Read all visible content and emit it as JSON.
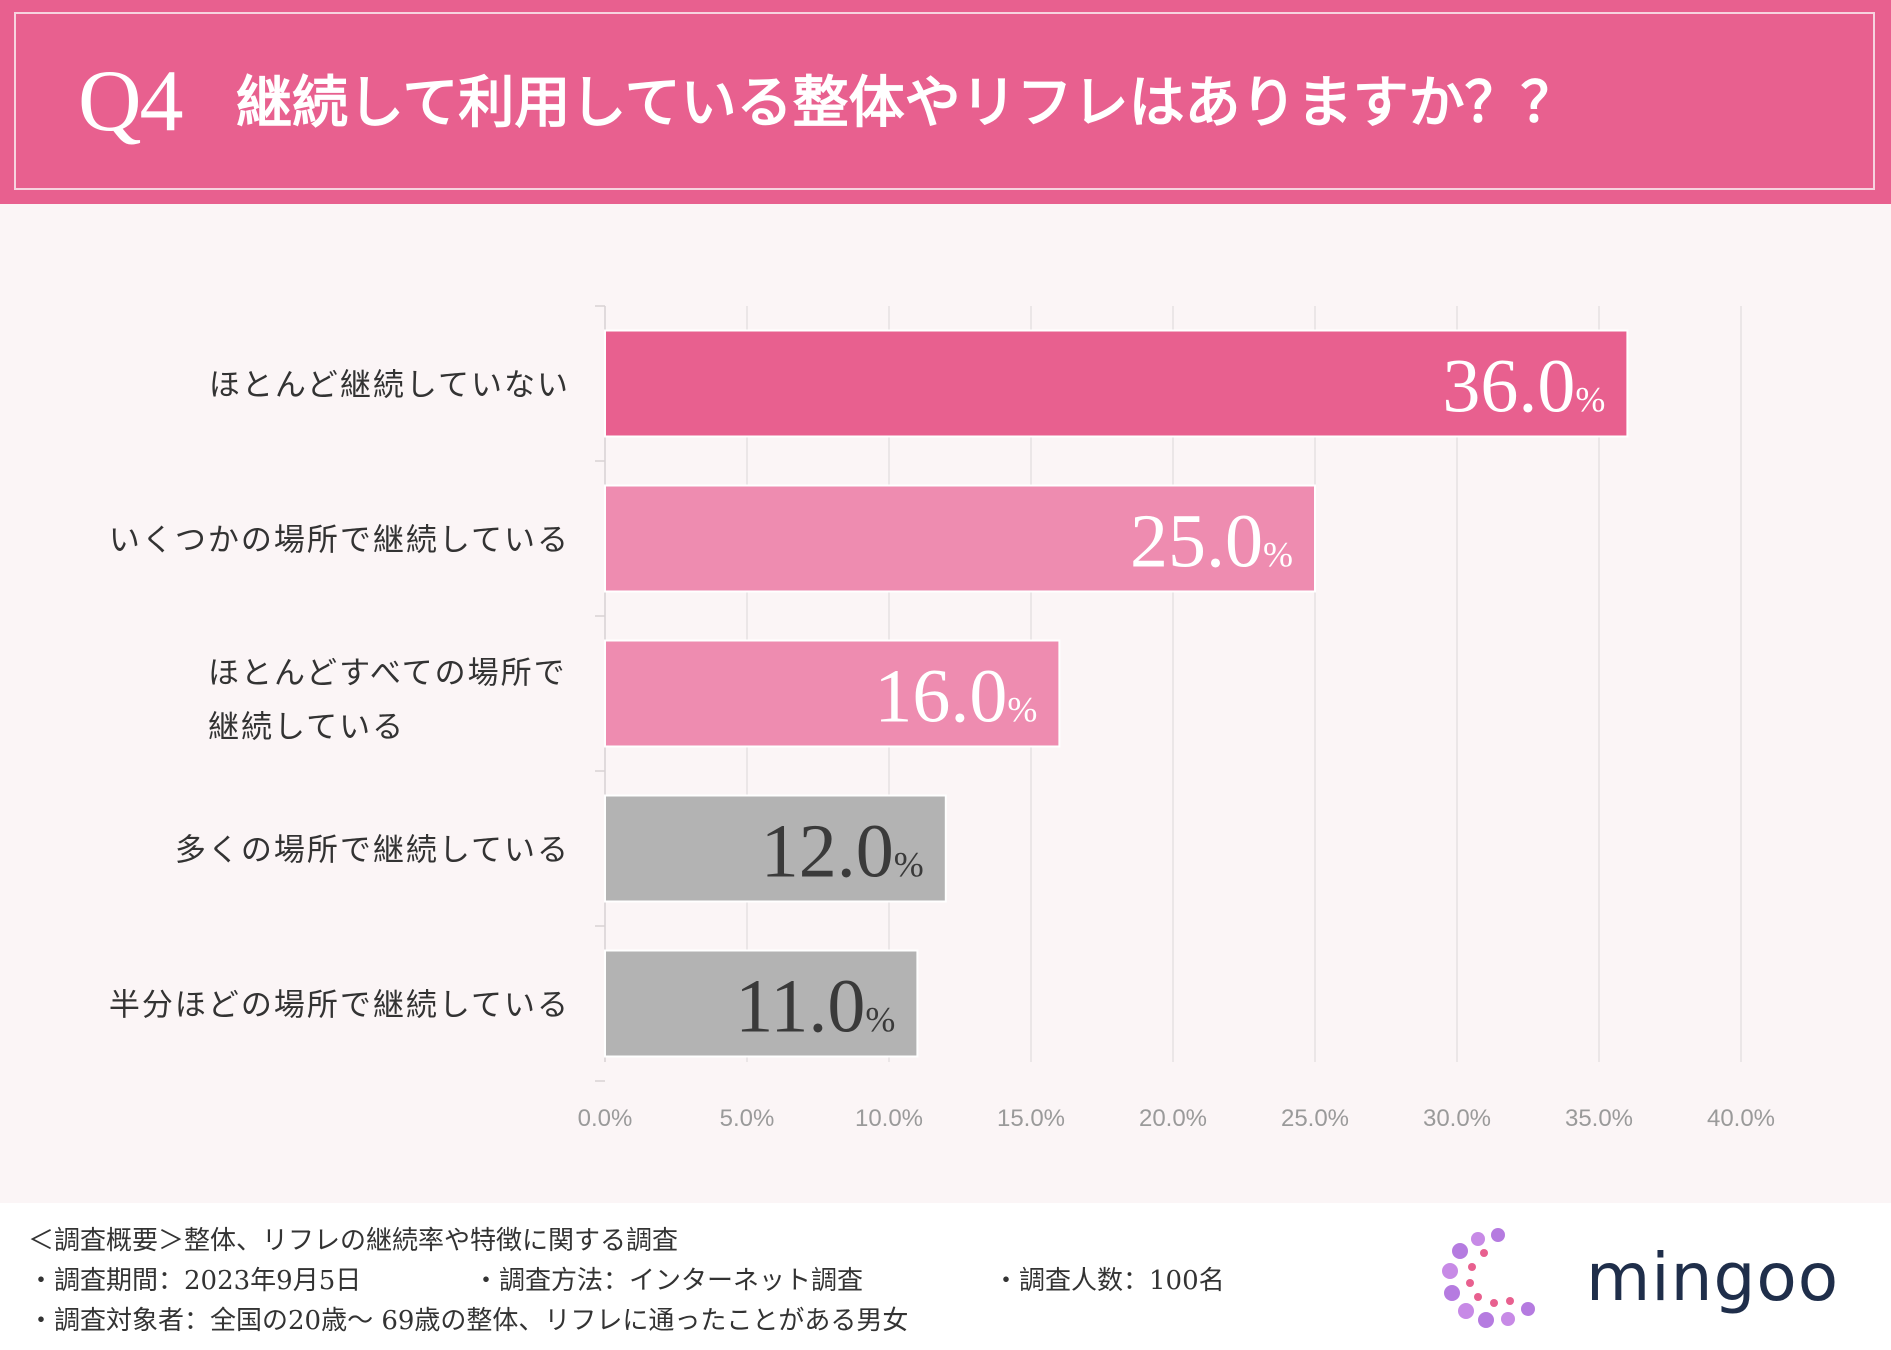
{
  "header": {
    "q_label": "Q4",
    "title": "継続して利用している整体やリフレはありますか？？"
  },
  "chart_data": {
    "type": "bar",
    "orientation": "horizontal",
    "categories": [
      "ほとんど継続していない",
      "いくつかの場所で継続している",
      "ほとんどすべての場所で\n継続している",
      "多くの場所で継続している",
      "半分ほどの場所で継続している"
    ],
    "values": [
      36.0,
      25.0,
      16.0,
      12.0,
      11.0
    ],
    "bar_colors": [
      "#e8608f",
      "#ee8cb0",
      "#ee8cb0",
      "#b3b3b3",
      "#b3b3b3"
    ],
    "label_colors": [
      "#ffffff",
      "#ffffff",
      "#ffffff",
      "#3a3a3a",
      "#3a3a3a"
    ],
    "x_ticks": [
      "0.0%",
      "5.0%",
      "10.0%",
      "15.0%",
      "20.0%",
      "25.0%",
      "30.0%",
      "35.0%",
      "40.0%"
    ],
    "xlim": [
      0,
      40
    ],
    "grid": true,
    "unit_suffix": "%"
  },
  "footer": {
    "summary": "＜調査概要＞整体、リフレの継続率や特徴に関する調査",
    "period": "・調査期間：2023年9月5日",
    "method": "・調査方法：インターネット調査",
    "count": "・調査人数：100名",
    "target": "・調査対象者：全国の20歳〜 69歳の整体、リフレに通ったことがある男女"
  },
  "brand": {
    "name": "mingoo",
    "icon": "mingoo-dots-logo-icon"
  },
  "colors": {
    "accent": "#e8608f",
    "light_accent": "#ee8cb0",
    "gray_bar": "#b3b3b3",
    "background": "#fbf5f6"
  }
}
